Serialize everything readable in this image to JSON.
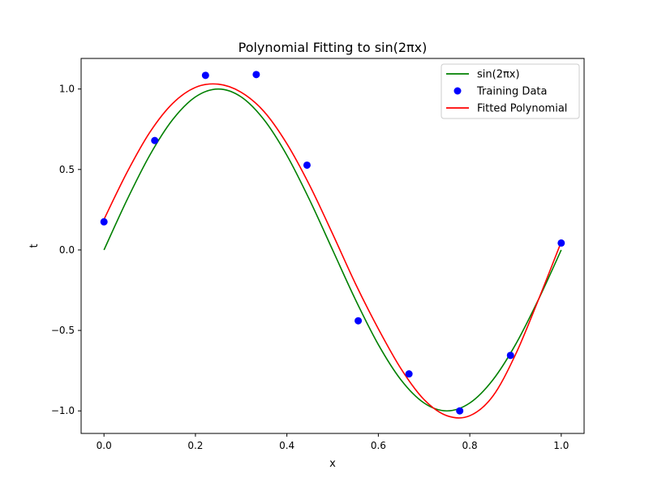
{
  "chart_data": {
    "type": "line",
    "title": "Polynomial Fitting to sin(2πx)",
    "xlabel": "x",
    "ylabel": "t",
    "xlim": [
      -0.05,
      1.05
    ],
    "ylim": [
      -1.14,
      1.19
    ],
    "xticks": [
      0.0,
      0.2,
      0.4,
      0.6,
      0.8,
      1.0
    ],
    "xtick_labels": [
      "0.0",
      "0.2",
      "0.4",
      "0.6",
      "0.8",
      "1.0"
    ],
    "yticks": [
      -1.0,
      -0.5,
      0.0,
      0.5,
      1.0
    ],
    "ytick_labels": [
      "−1.0",
      "−0.5",
      "0.0",
      "0.5",
      "1.0"
    ],
    "grid": false,
    "legend_position": "upper right",
    "series": [
      {
        "name": "sin(2πx)",
        "kind": "line",
        "color": "#008000",
        "x": [
          0.0,
          0.05,
          0.1,
          0.15,
          0.2,
          0.25,
          0.3,
          0.35,
          0.4,
          0.45,
          0.5,
          0.55,
          0.6,
          0.65,
          0.7,
          0.75,
          0.8,
          0.85,
          0.9,
          0.95,
          1.0
        ],
        "y": [
          0.0,
          0.309,
          0.588,
          0.809,
          0.951,
          1.0,
          0.951,
          0.809,
          0.588,
          0.309,
          0.0,
          -0.309,
          -0.588,
          -0.809,
          -0.951,
          -1.0,
          -0.951,
          -0.809,
          -0.588,
          -0.309,
          0.0
        ]
      },
      {
        "name": "Training Data",
        "kind": "scatter",
        "color": "#0000ff",
        "x": [
          0.0,
          0.111,
          0.222,
          0.333,
          0.444,
          0.556,
          0.667,
          0.778,
          0.889,
          1.0
        ],
        "y": [
          0.175,
          0.68,
          1.085,
          1.09,
          0.527,
          -0.44,
          -0.77,
          -1.0,
          -0.655,
          0.043
        ]
      },
      {
        "name": "Fitted Polynomial",
        "kind": "line",
        "color": "#ff0000",
        "x": [
          0.0,
          0.05,
          0.1,
          0.15,
          0.2,
          0.25,
          0.3,
          0.35,
          0.4,
          0.45,
          0.5,
          0.55,
          0.6,
          0.65,
          0.7,
          0.75,
          0.8,
          0.85,
          0.9,
          0.95,
          1.0
        ],
        "y": [
          0.19,
          0.48,
          0.73,
          0.91,
          1.01,
          1.03,
          0.98,
          0.86,
          0.66,
          0.4,
          0.1,
          -0.21,
          -0.49,
          -0.74,
          -0.93,
          -1.03,
          -1.03,
          -0.91,
          -0.65,
          -0.31,
          0.05
        ]
      }
    ]
  }
}
